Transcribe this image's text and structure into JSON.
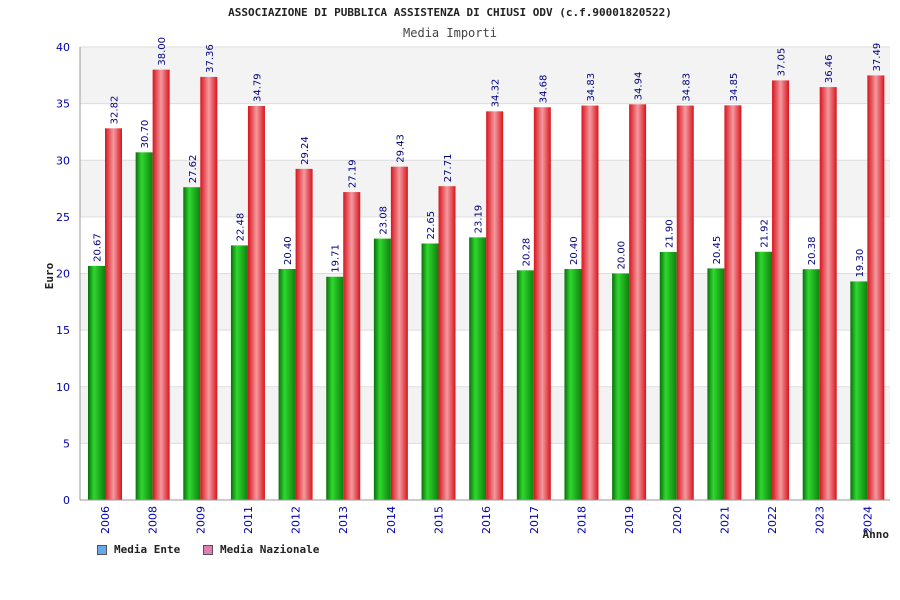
{
  "chart_data": {
    "type": "bar",
    "title": "ASSOCIAZIONE DI PUBBLICA ASSISTENZA DI CHIUSI ODV (c.f.90001820522)",
    "subtitle": "Media Importi",
    "xlabel": "Anno",
    "ylabel": "Euro",
    "ylim": [
      0,
      40
    ],
    "yticks": [
      "0",
      "5",
      "10",
      "15",
      "20",
      "25",
      "30",
      "35",
      "40"
    ],
    "grid": true,
    "legend_position": "bottom-left",
    "categories": [
      "2006",
      "2008",
      "2009",
      "2011",
      "2012",
      "2013",
      "2014",
      "2015",
      "2016",
      "2017",
      "2018",
      "2019",
      "2020",
      "2021",
      "2022",
      "2023",
      "2024"
    ],
    "series": [
      {
        "name": "Media Ente",
        "color": "#1f9e1f",
        "values": [
          20.67,
          30.7,
          27.62,
          22.48,
          20.4,
          19.71,
          23.08,
          22.65,
          23.19,
          20.28,
          20.4,
          20.0,
          21.9,
          20.45,
          21.92,
          20.38,
          19.3
        ],
        "labels": [
          "20.67",
          "30.70",
          "27.62",
          "22.48",
          "20.40",
          "19.71",
          "23.08",
          "22.65",
          "23.19",
          "20.28",
          "20.40",
          "20.00",
          "21.90",
          "20.45",
          "21.92",
          "20.38",
          "19.30"
        ]
      },
      {
        "name": "Media Nazionale",
        "color": "#e3242b",
        "values": [
          32.82,
          38.0,
          37.36,
          34.79,
          29.24,
          27.19,
          29.43,
          27.71,
          34.32,
          34.68,
          34.83,
          34.94,
          34.83,
          34.85,
          37.05,
          36.46,
          37.49
        ],
        "labels": [
          "32.82",
          "38.00",
          "37.36",
          "34.79",
          "29.24",
          "27.19",
          "29.43",
          "27.71",
          "34.32",
          "34.68",
          "34.83",
          "34.94",
          "34.83",
          "34.85",
          "37.05",
          "36.46",
          "37.49"
        ]
      }
    ]
  },
  "legend": {
    "items": [
      {
        "label": "Media Ente",
        "swatch_color": "#6aa6e8"
      },
      {
        "label": "Media Nazionale",
        "swatch_color": "#e07fb0"
      }
    ]
  }
}
